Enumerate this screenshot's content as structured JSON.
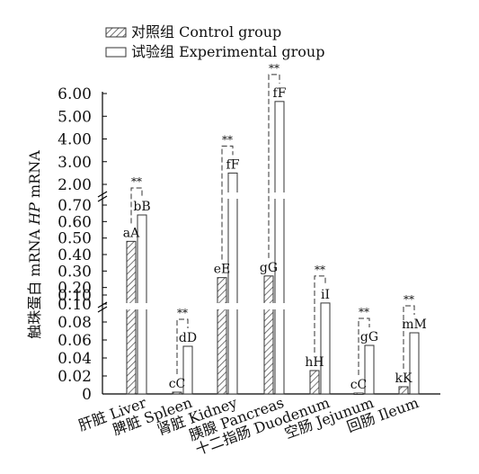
{
  "chart_data": {
    "type": "bar",
    "ylabel": "触珠蛋白 mRNA HP mRNA",
    "ylabel_parts": {
      "cn": "触珠蛋白",
      "pre": "mRNA ",
      "italic": "HP",
      "post": " mRNA"
    },
    "broken_axis": true,
    "yaxis_segments": [
      {
        "ylim": [
          0,
          0.1
        ],
        "ticks": [
          "0",
          "0.02",
          "0.04",
          "0.06",
          "0.08",
          "0.10"
        ]
      },
      {
        "ylim": [
          0.1,
          0.7
        ],
        "ticks": [
          "0.10",
          "0.20",
          "0.30",
          "0.40",
          "0.50",
          "0.60",
          "0.70"
        ]
      },
      {
        "ylim": [
          2.0,
          6.0
        ],
        "ticks": [
          "2.00",
          "3.00",
          "4.00",
          "5.00",
          "6.00"
        ]
      }
    ],
    "categories": [
      "肝脏 Liver",
      "脾脏 Spleen",
      "肾脏 Kidney",
      "胰腺 Pancreas",
      "十二指肠 Duodenum",
      "空肠 Jejunum",
      "回肠 Ileum"
    ],
    "series": [
      {
        "name": "对照组 Control group",
        "pattern": "hatched",
        "values": [
          0.48,
          0.002,
          0.26,
          0.27,
          0.026,
          0.001,
          0.008
        ],
        "labels": [
          "aA",
          "cC",
          "eE",
          "gG",
          "hH",
          "cC",
          "kK"
        ]
      },
      {
        "name": "试验组 Experimental group",
        "pattern": "open",
        "values": [
          0.64,
          0.053,
          2.5,
          5.65,
          0.106,
          0.054,
          0.068
        ],
        "labels": [
          "bB",
          "dD",
          "fF",
          "fF",
          "iI",
          "gG",
          "mM"
        ]
      }
    ],
    "significance": [
      "**",
      "**",
      "**",
      "**",
      "**",
      "**",
      "**"
    ],
    "legend": "top-left",
    "grid": false,
    "colors": {
      "bar_fill": "#ffffff",
      "bar_edge": "#333333",
      "hatch": "#555555",
      "axis": "#000000"
    }
  }
}
